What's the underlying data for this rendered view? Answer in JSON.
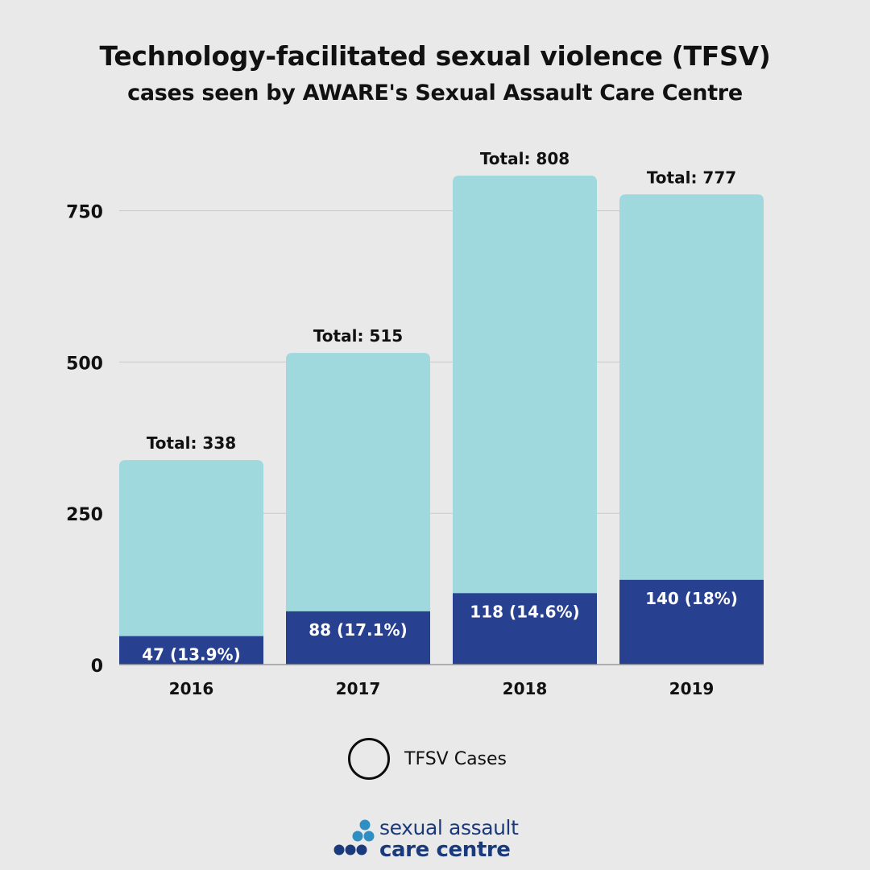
{
  "title": "Technology-facilitated sexual violence (TFSV)",
  "subtitle": "cases seen by AWARE's Sexual Assault Care Centre",
  "colors": {
    "background": "#e9e9e9",
    "total_bar": "#9fd8dd",
    "tfsv_bar": "#27408f",
    "grid": "#c9c9c9",
    "axis": "#9a9a9a",
    "text": "#111111",
    "logo_dark": "#1b3a7c",
    "logo_light": "#2f8fc2"
  },
  "chart_data": {
    "type": "bar",
    "stacked": true,
    "categories": [
      "2016",
      "2017",
      "2018",
      "2019"
    ],
    "series": [
      {
        "name": "TFSV Cases",
        "values": [
          47,
          88,
          118,
          140
        ],
        "labels": [
          "47 (13.9%)",
          "88 (17.1%)",
          "118 (14.6%)",
          "140 (18%)"
        ]
      },
      {
        "values": [
          338,
          515,
          808,
          777
        ],
        "labels": [
          "Total: 338",
          "Total: 515",
          "Total: 808",
          "Total: 777"
        ]
      }
    ],
    "yticks": [
      {
        "value": 0,
        "label": "0"
      },
      {
        "value": 250,
        "label": "250"
      },
      {
        "value": 500,
        "label": "500"
      },
      {
        "value": 750,
        "label": "750"
      }
    ],
    "ylim": [
      0,
      808
    ],
    "grid": true,
    "legend": "bottom-center"
  },
  "legend": {
    "label": "TFSV Cases"
  },
  "logo": {
    "line1": "sexual assault",
    "line2": "care centre"
  }
}
